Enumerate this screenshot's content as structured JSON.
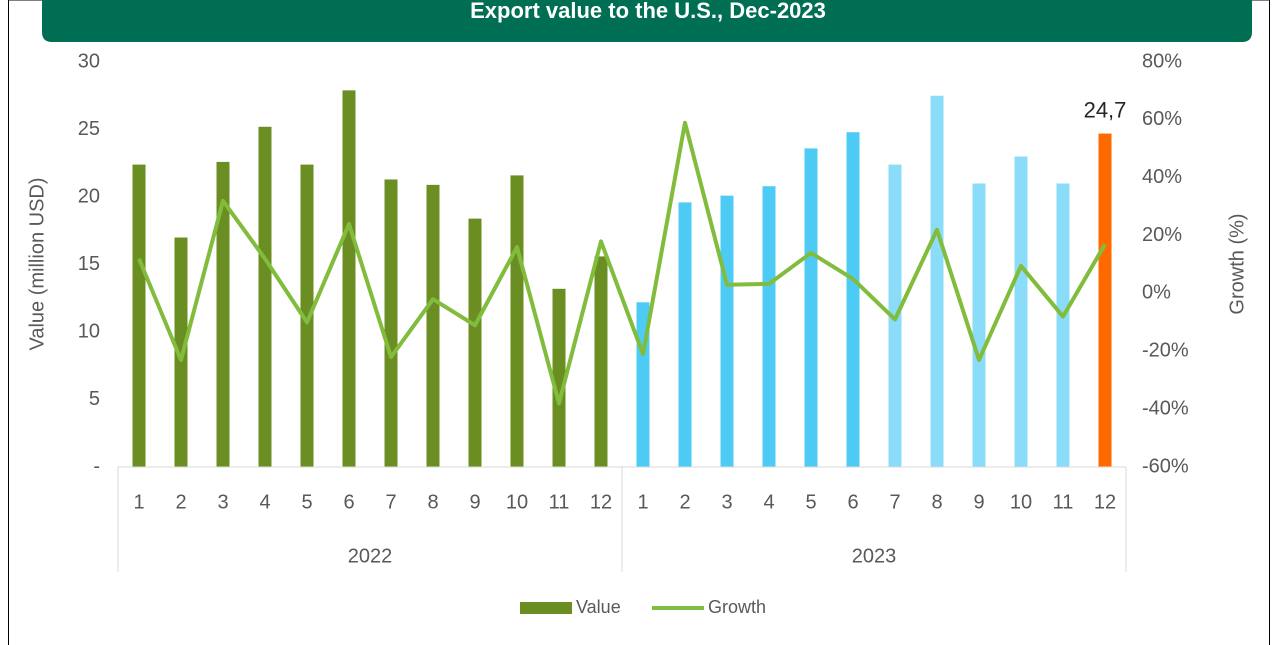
{
  "chart_data": {
    "type": "bar_line",
    "title": "Export value to the U.S., Dec-2023",
    "ylabel": "Value (million USD)",
    "y2label": "Growth (%)",
    "categories": [
      "1",
      "2",
      "3",
      "4",
      "5",
      "6",
      "7",
      "8",
      "9",
      "10",
      "11",
      "12",
      "1",
      "2",
      "3",
      "4",
      "5",
      "6",
      "7",
      "8",
      "9",
      "10",
      "11",
      "12"
    ],
    "groups": [
      "2022",
      "2023"
    ],
    "series": [
      {
        "name": "Value",
        "type": "bar",
        "color": "#6b8e23",
        "colors": [
          "#6b8e23",
          "#6b8e23",
          "#6b8e23",
          "#6b8e23",
          "#6b8e23",
          "#6b8e23",
          "#6b8e23",
          "#6b8e23",
          "#6b8e23",
          "#6b8e23",
          "#6b8e23",
          "#6b8e23",
          "#4dcbf5",
          "#4dcbf5",
          "#4dcbf5",
          "#4dcbf5",
          "#4dcbf5",
          "#4dcbf5",
          "#8adcf8",
          "#8adcf8",
          "#8adcf8",
          "#8adcf8",
          "#8adcf8",
          "#ff6a00"
        ],
        "values": [
          22.4,
          17.0,
          22.6,
          25.2,
          22.4,
          27.9,
          21.3,
          20.9,
          18.4,
          21.6,
          13.2,
          15.6,
          12.2,
          19.6,
          20.1,
          20.8,
          23.6,
          24.8,
          22.4,
          27.5,
          21.0,
          23.0,
          21.0,
          24.7
        ],
        "value_labels": [
          null,
          null,
          null,
          null,
          null,
          null,
          null,
          null,
          null,
          null,
          null,
          null,
          null,
          null,
          null,
          null,
          null,
          null,
          null,
          null,
          null,
          null,
          null,
          "24,7"
        ]
      },
      {
        "name": "Growth",
        "type": "line",
        "axis": "y2",
        "color": "#82bc3c",
        "values": [
          12,
          -23,
          32,
          12,
          -10,
          24,
          -22,
          -2,
          -11,
          16,
          -38,
          18,
          -21,
          59,
          3,
          3.3,
          14,
          5,
          -9,
          22,
          -23,
          9.5,
          -8,
          17
        ]
      }
    ],
    "ylim": [
      0,
      30
    ],
    "yticks": [
      {
        "value": 0,
        "label": "-"
      },
      5,
      10,
      15,
      20,
      25,
      30
    ],
    "y2lim": [
      -60,
      80
    ],
    "y2ticks": [
      {
        "value": -60,
        "label": "-60%"
      },
      {
        "value": -40,
        "label": "-40%"
      },
      {
        "value": -20,
        "label": "-20%"
      },
      {
        "value": 0,
        "label": "0%"
      },
      {
        "value": 20,
        "label": "20%"
      },
      {
        "value": 40,
        "label": "40%"
      },
      {
        "value": 60,
        "label": "60%"
      },
      {
        "value": 80,
        "label": "80%"
      }
    ],
    "grid": false,
    "legend": "bottom"
  }
}
